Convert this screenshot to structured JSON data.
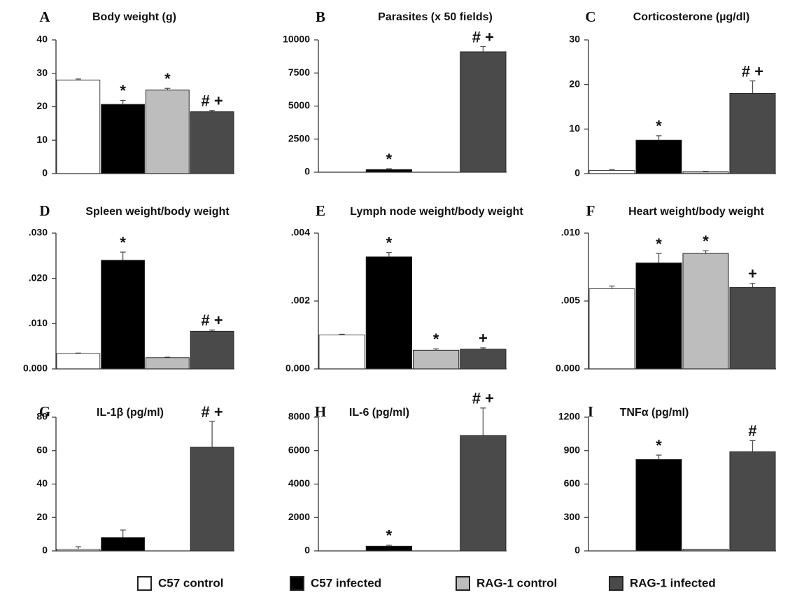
{
  "legend": {
    "items": [
      {
        "label": "C57 control",
        "color": "#ffffff"
      },
      {
        "label": "C57 infected",
        "color": "#000000"
      },
      {
        "label": "RAG-1 control",
        "color": "#bdbdbd"
      },
      {
        "label": "RAG-1 infected",
        "color": "#4a4a4a"
      }
    ]
  },
  "chart_data": [
    {
      "letter": "A",
      "type": "bar",
      "title": "Body weight (g)",
      "ylim": [
        0,
        40
      ],
      "ticks": [
        "0",
        "10",
        "20",
        "30",
        "40"
      ],
      "values": [
        28,
        20.7,
        25,
        18.5
      ],
      "errors": [
        0.3,
        1.2,
        0.5,
        0.4
      ],
      "annotations": [
        "",
        "*",
        "*",
        "# +"
      ]
    },
    {
      "letter": "B",
      "type": "bar",
      "title": "Parasites (x 50 fields)",
      "ylim": [
        0,
        10000
      ],
      "ticks": [
        "0",
        "2500",
        "5000",
        "7500",
        "10000"
      ],
      "values": [
        0,
        200,
        0,
        9100
      ],
      "errors": [
        0,
        60,
        0,
        400
      ],
      "annotations": [
        "",
        "*",
        "",
        "# +"
      ]
    },
    {
      "letter": "C",
      "type": "bar",
      "title": "Corticosterone (µg/dl)",
      "ylim": [
        0,
        30
      ],
      "ticks": [
        "0",
        "10",
        "20",
        "30"
      ],
      "values": [
        0.7,
        7.5,
        0.4,
        18
      ],
      "errors": [
        0.2,
        1,
        0.1,
        2.8
      ],
      "annotations": [
        "",
        "*",
        "",
        "# +"
      ]
    },
    {
      "letter": "D",
      "type": "bar",
      "title": "Spleen weight/body weight",
      "ylim": [
        0,
        0.03
      ],
      "ticks": [
        "0.000",
        ".010",
        ".020",
        ".030"
      ],
      "values": [
        0.0034,
        0.024,
        0.0025,
        0.0083
      ],
      "errors": [
        0.0001,
        0.0018,
        0.0001,
        0.0003
      ],
      "annotations": [
        "",
        "*",
        "",
        "# +"
      ]
    },
    {
      "letter": "E",
      "type": "bar",
      "title": "Lymph node weight/body weight",
      "ylim": [
        0,
        0.004
      ],
      "ticks": [
        "0.000",
        ".002",
        ".004"
      ],
      "values": [
        0.001,
        0.0033,
        0.00055,
        0.00058
      ],
      "errors": [
        2e-05,
        0.00013,
        4e-05,
        4e-05
      ],
      "annotations": [
        "",
        "*",
        "*",
        "+"
      ]
    },
    {
      "letter": "F",
      "type": "bar",
      "title": "Heart weight/body weight",
      "ylim": [
        0,
        0.01
      ],
      "ticks": [
        "0.000",
        ".005",
        ".010"
      ],
      "values": [
        0.0059,
        0.0078,
        0.0085,
        0.006
      ],
      "errors": [
        0.0002,
        0.0007,
        0.0002,
        0.0003
      ],
      "annotations": [
        "",
        "*",
        "*",
        "+"
      ]
    },
    {
      "letter": "G",
      "type": "bar",
      "title": "IL-1β (pg/ml)",
      "ylim": [
        0,
        80
      ],
      "ticks": [
        "0",
        "20",
        "40",
        "60",
        "80"
      ],
      "values": [
        1,
        8,
        0,
        62
      ],
      "errors": [
        1.5,
        4.5,
        0,
        15.5
      ],
      "annotations": [
        "",
        "",
        "",
        "# +"
      ]
    },
    {
      "letter": "H",
      "type": "bar",
      "title": "IL-6 (pg/ml)",
      "ylim": [
        0,
        8000
      ],
      "ticks": [
        "0",
        "2000",
        "4000",
        "6000",
        "8000"
      ],
      "values": [
        0,
        280,
        0,
        6900
      ],
      "errors": [
        0,
        60,
        0,
        1650
      ],
      "annotations": [
        "",
        "*",
        "",
        "# +"
      ]
    },
    {
      "letter": "I",
      "type": "bar",
      "title": "TNFα (pg/ml)",
      "ylim": [
        0,
        1200
      ],
      "ticks": [
        "0",
        "300",
        "600",
        "900",
        "1200"
      ],
      "values": [
        0,
        820,
        15,
        890
      ],
      "errors": [
        0,
        40,
        0,
        100
      ],
      "annotations": [
        "",
        "*",
        "",
        "#"
      ]
    }
  ]
}
